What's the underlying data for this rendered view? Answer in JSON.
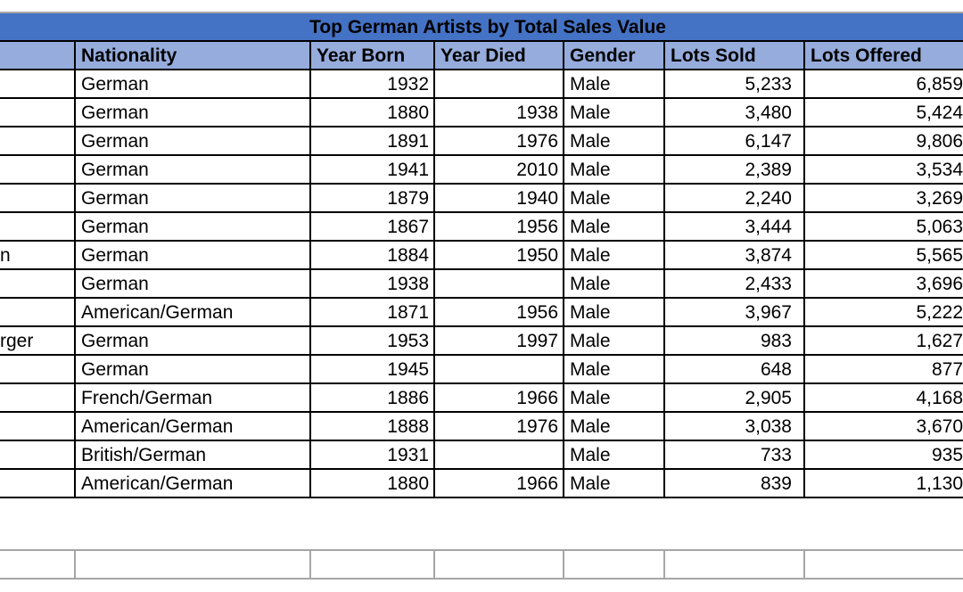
{
  "title": "Top German Artists by Total Sales Value",
  "colors": {
    "title_bg": "#4472C4",
    "header_bg": "#96ACDC",
    "grid_black": "#000000",
    "grid_gray": "#A6A6A6",
    "text": "#000000",
    "cell_bg": "#FFFFFF"
  },
  "columns": [
    {
      "key": "name",
      "label": "",
      "align": "left"
    },
    {
      "key": "nationality",
      "label": "Nationality",
      "align": "left"
    },
    {
      "key": "year_born",
      "label": "Year Born",
      "align": "right"
    },
    {
      "key": "year_died",
      "label": "Year Died",
      "align": "right"
    },
    {
      "key": "gender",
      "label": "Gender",
      "align": "left"
    },
    {
      "key": "lots_sold",
      "label": "Lots Sold",
      "align": "right"
    },
    {
      "key": "lots_offered",
      "label": "Lots Offered",
      "align": "right"
    }
  ],
  "rows": [
    {
      "name": "",
      "nationality": "German",
      "year_born": "1932",
      "year_died": "",
      "gender": "Male",
      "lots_sold": "5,233",
      "lots_offered": "6,859"
    },
    {
      "name": "",
      "nationality": "German",
      "year_born": "1880",
      "year_died": "1938",
      "gender": "Male",
      "lots_sold": "3,480",
      "lots_offered": "5,424"
    },
    {
      "name": "",
      "nationality": "German",
      "year_born": "1891",
      "year_died": "1976",
      "gender": "Male",
      "lots_sold": "6,147",
      "lots_offered": "9,806"
    },
    {
      "name": "",
      "nationality": "German",
      "year_born": "1941",
      "year_died": "2010",
      "gender": "Male",
      "lots_sold": "2,389",
      "lots_offered": "3,534"
    },
    {
      "name": "",
      "nationality": "German",
      "year_born": "1879",
      "year_died": "1940",
      "gender": "Male",
      "lots_sold": "2,240",
      "lots_offered": "3,269"
    },
    {
      "name": "",
      "nationality": "German",
      "year_born": "1867",
      "year_died": "1956",
      "gender": "Male",
      "lots_sold": "3,444",
      "lots_offered": "5,063"
    },
    {
      "name": "n",
      "nationality": "German",
      "year_born": "1884",
      "year_died": "1950",
      "gender": "Male",
      "lots_sold": "3,874",
      "lots_offered": "5,565"
    },
    {
      "name": "",
      "nationality": "German",
      "year_born": "1938",
      "year_died": "",
      "gender": "Male",
      "lots_sold": "2,433",
      "lots_offered": "3,696"
    },
    {
      "name": "",
      "nationality": "American/German",
      "year_born": "1871",
      "year_died": "1956",
      "gender": "Male",
      "lots_sold": "3,967",
      "lots_offered": "5,222"
    },
    {
      "name": "rger",
      "nationality": "German",
      "year_born": "1953",
      "year_died": "1997",
      "gender": "Male",
      "lots_sold": "983",
      "lots_offered": "1,627"
    },
    {
      "name": "",
      "nationality": "German",
      "year_born": "1945",
      "year_died": "",
      "gender": "Male",
      "lots_sold": "648",
      "lots_offered": "877"
    },
    {
      "name": "",
      "nationality": "French/German",
      "year_born": "1886",
      "year_died": "1966",
      "gender": "Male",
      "lots_sold": "2,905",
      "lots_offered": "4,168"
    },
    {
      "name": "",
      "nationality": "American/German",
      "year_born": "1888",
      "year_died": "1976",
      "gender": "Male",
      "lots_sold": "3,038",
      "lots_offered": "3,670"
    },
    {
      "name": "",
      "nationality": "British/German",
      "year_born": "1931",
      "year_died": "",
      "gender": "Male",
      "lots_sold": "733",
      "lots_offered": "935"
    },
    {
      "name": "",
      "nationality": "American/German",
      "year_born": "1880",
      "year_died": "1966",
      "gender": "Male",
      "lots_sold": "839",
      "lots_offered": "1,130"
    }
  ]
}
